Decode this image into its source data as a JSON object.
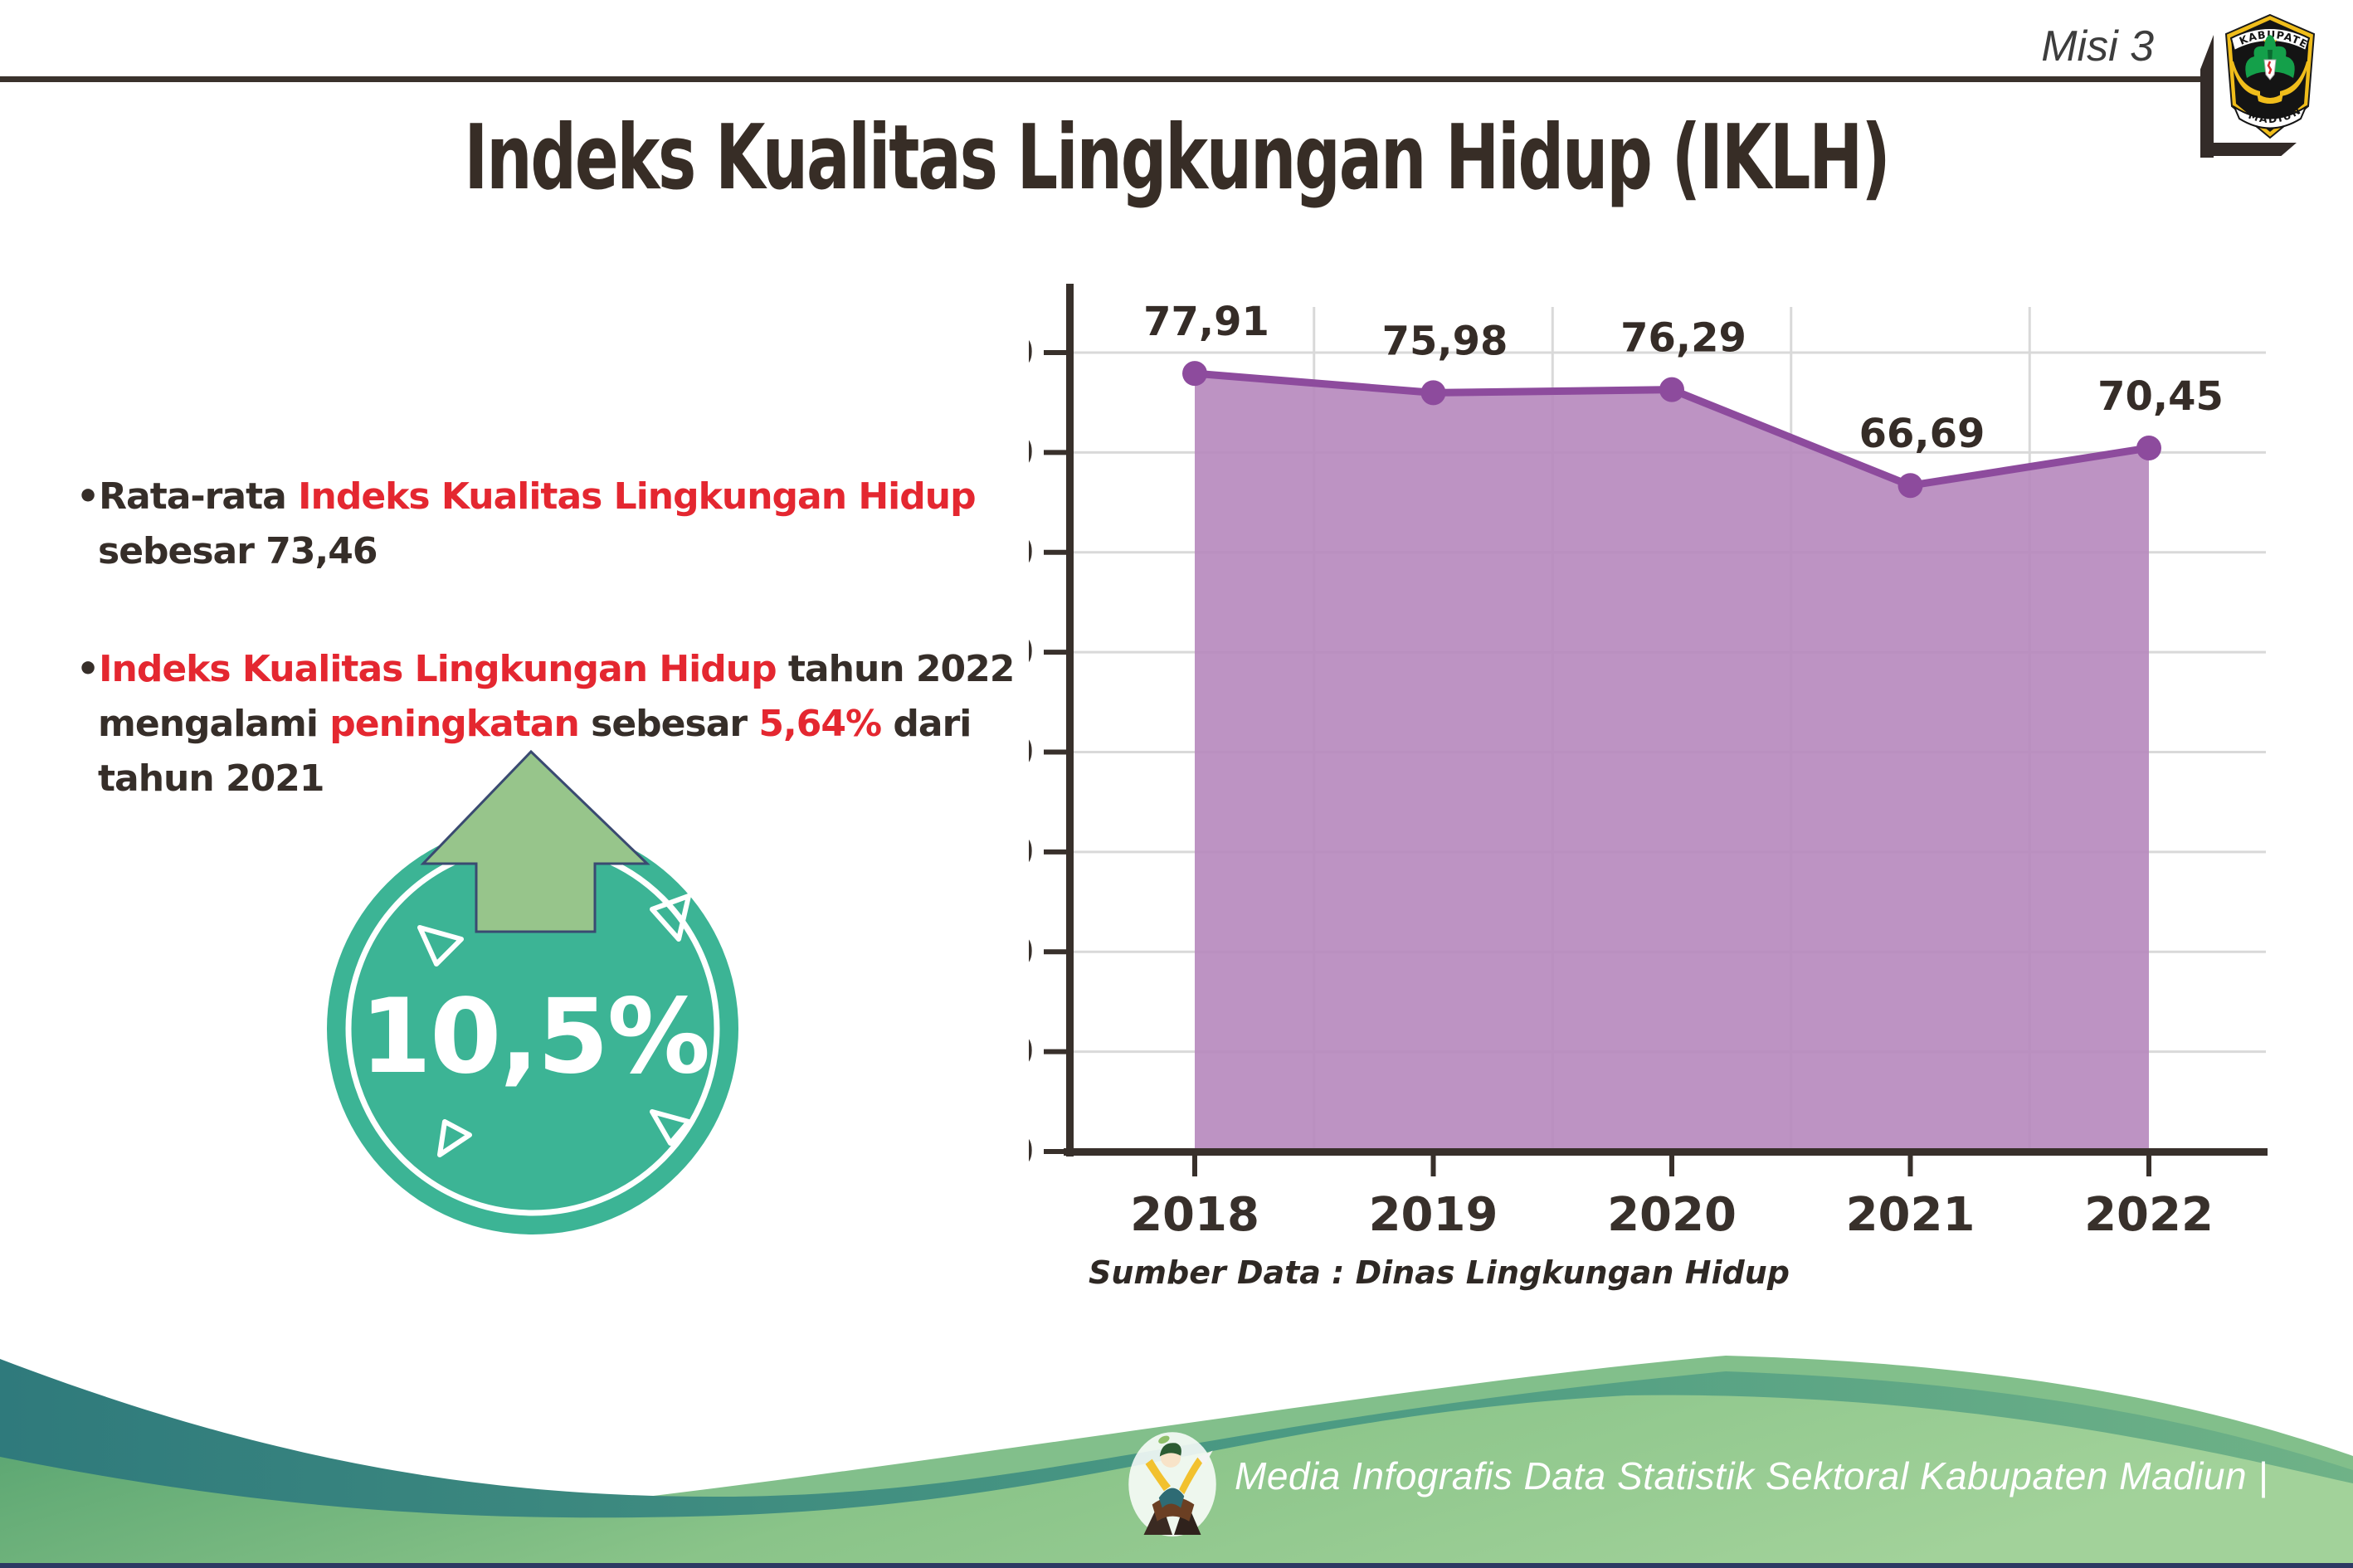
{
  "header": {
    "misi_label": "Misi 3",
    "logo_top": "KABUPATEN",
    "logo_bottom": "MADIUN"
  },
  "title": "Indeks Kualitas Lingkungan Hidup (IKLH)",
  "bullets": [
    {
      "lines": [
        [
          {
            "t": "•Rata-rata ",
            "c": "dark"
          },
          {
            "t": "Indeks Kualitas Lingkungan Hidup",
            "c": "red"
          }
        ],
        [
          {
            "t": "sebesar 73,46",
            "c": "dark"
          }
        ]
      ]
    },
    {
      "lines": [
        [
          {
            "t": "•",
            "c": "dark"
          },
          {
            "t": "Indeks Kualitas Lingkungan Hidup",
            "c": "red"
          },
          {
            "t": " tahun 2022",
            "c": "dark"
          }
        ],
        [
          {
            "t": "mengalami ",
            "c": "dark"
          },
          {
            "t": "peningkatan",
            "c": "red"
          },
          {
            "t": " sebesar ",
            "c": "dark"
          },
          {
            "t": "5,64%",
            "c": "red"
          },
          {
            "t": " dari",
            "c": "dark"
          }
        ],
        [
          {
            "t": "tahun 2021",
            "c": "dark"
          }
        ]
      ]
    }
  ],
  "badge": {
    "value": "10,5%",
    "direction": "up",
    "circle_color": "#3cb495",
    "arrow_color": "#97c58b"
  },
  "chart_data": {
    "type": "area",
    "categories": [
      "2018",
      "2019",
      "2020",
      "2021",
      "2022"
    ],
    "values": [
      77.91,
      75.98,
      76.29,
      66.69,
      70.45
    ],
    "value_labels": [
      "77,91",
      "75,98",
      "76,29",
      "66,69",
      "70,45"
    ],
    "title": "",
    "xlabel": "",
    "ylabel": "",
    "ylim": [
      0,
      80
    ],
    "ytick_step": 10,
    "grid": true,
    "legend": "none",
    "line_color": "#8d4b9d",
    "fill_color": "#b687bd",
    "axis_color": "#38302b",
    "grid_color": "#d9d9d9",
    "label_color": "#352c27",
    "source_note": "Sumber Data : Dinas Lingkungan Hidup"
  },
  "footer": {
    "credit": "Media Infografis Data Statistik Sektoral Kabupaten Madiun |"
  }
}
